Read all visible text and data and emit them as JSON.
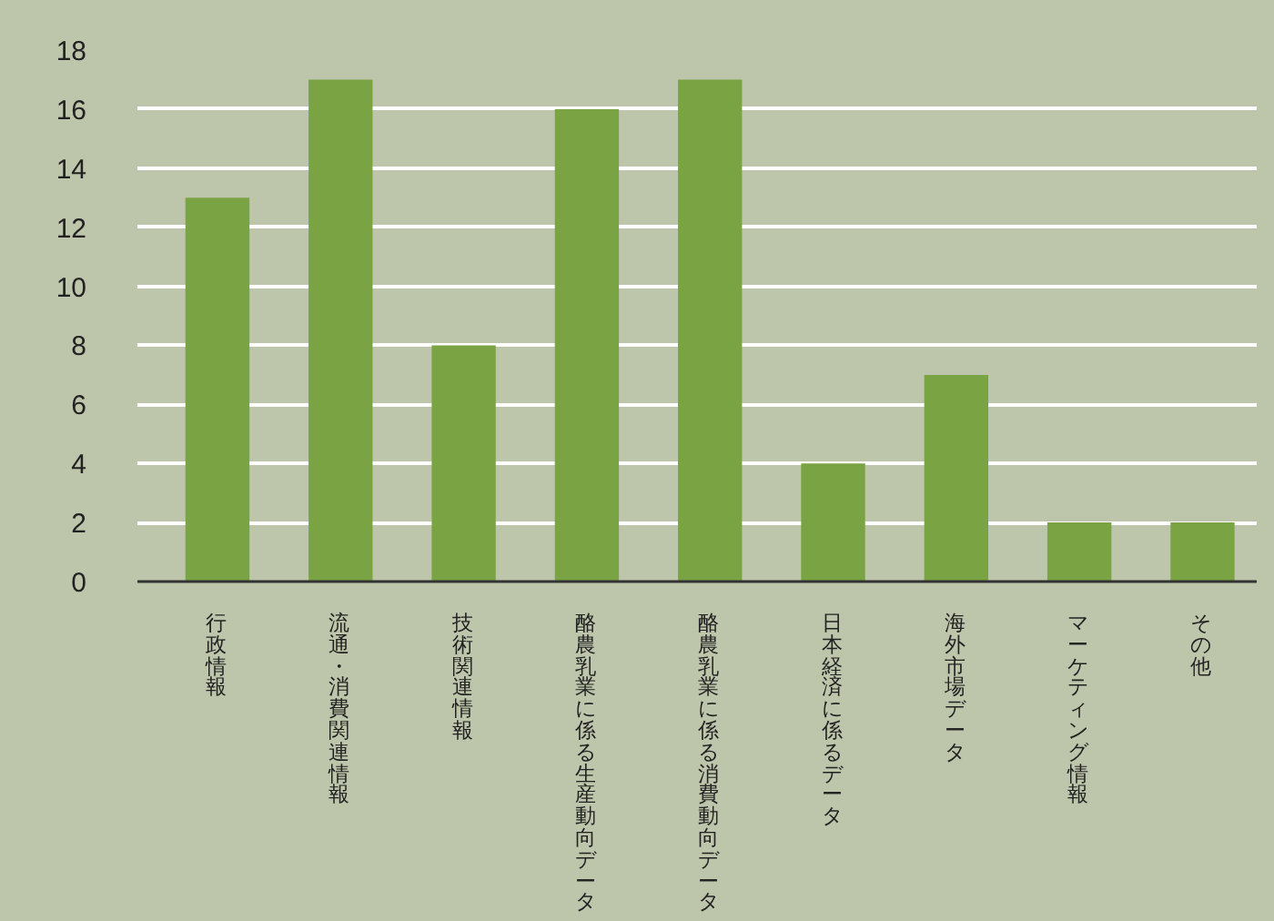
{
  "chart_data": {
    "type": "bar",
    "categories": [
      "行政情報",
      "流通・消費関連情報",
      "技術関連情報",
      "酪農乳業に係る生産動向データ",
      "酪農乳業に係る消費動向データ",
      "日本経済に係るデータ",
      "海外市場データ",
      "マーケティング情報",
      "その他"
    ],
    "values": [
      13,
      17,
      8,
      16,
      17,
      4,
      7,
      2,
      2
    ],
    "color": "#7aa443",
    "ylim": [
      0,
      18
    ],
    "yticks": [
      0,
      2,
      4,
      6,
      8,
      10,
      12,
      14,
      16,
      18
    ],
    "grid": "y"
  }
}
